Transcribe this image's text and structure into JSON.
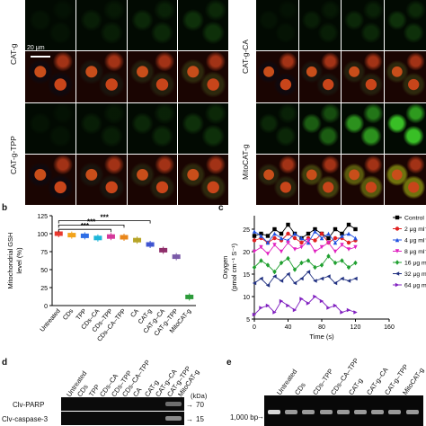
{
  "panel_a": {
    "scale_bar": "20 μm",
    "left_labels": [
      "CAT-g",
      "CAT-g-TPP"
    ],
    "right_labels": [
      "CAT-g-CA",
      "MitoCAT-g"
    ]
  },
  "panel_b": {
    "letter": "b",
    "ylabel": "Mitochondrial GSH\nlevel (%)",
    "significance": [
      "***",
      "***",
      "***"
    ]
  },
  "panel_c": {
    "letter": "c",
    "ylabel": "Oxygen\n(pmol cm⁻¹ S⁻¹)",
    "xlabel": "Time (s)"
  },
  "panel_d": {
    "letter": "d",
    "kda_label": "(kDa)",
    "rows": [
      {
        "name": "Clv-PARP",
        "kda": "70"
      },
      {
        "name": "Clv-caspase-3",
        "kda": "15"
      }
    ],
    "lanes": [
      "Untreated",
      "CDs",
      "TPP",
      "CDs–CA",
      "CDs–TPP",
      "CDs–CA–TPP",
      "CA",
      "CAT-g",
      "CAT-g–CA",
      "CAT-g–TPP",
      "MitoCAT-g"
    ]
  },
  "panel_e": {
    "letter": "e",
    "marker": "1,000 bp",
    "lanes": [
      "Untreated",
      "CDs",
      "CDs–TPP",
      "CDs–CA–TPP",
      "CAT-g",
      "CAT-g–CA",
      "CAT-g–TPP",
      "MitoCAT-g"
    ]
  },
  "chart_data": [
    {
      "type": "bar",
      "categories": [
        "Untreated",
        "CDs",
        "TPP",
        "CDs–CA",
        "CDs–TPP",
        "CDs–CA–TPP",
        "CA",
        "CAT-g",
        "CAT-g–CA",
        "CAT-g–TPP",
        "MitoCAT-g"
      ],
      "values": [
        100,
        98,
        97,
        94,
        96,
        95,
        91,
        85,
        77,
        68,
        12
      ],
      "colors": [
        "#e8382f",
        "#f2a31b",
        "#2e6ee6",
        "#1fb6d9",
        "#d4399a",
        "#e9861a",
        "#b7a427",
        "#3f55d1",
        "#8f2f6b",
        "#7b5ba8",
        "#2d9b3a"
      ],
      "ylim": [
        0,
        125
      ],
      "yticks": [
        0,
        25,
        50,
        75,
        100,
        125
      ],
      "ylabel": "Mitochondrial GSH level (%)"
    },
    {
      "type": "line",
      "xlabel": "Time (s)",
      "ylabel": "Oxygen (pmol cm⁻¹ S⁻¹)",
      "xlim": [
        0,
        160
      ],
      "ylim": [
        5,
        28
      ],
      "xticks": [
        0,
        40,
        80,
        120,
        160
      ],
      "yticks": [
        5,
        10,
        15,
        20,
        25
      ],
      "x": [
        0,
        8,
        16,
        24,
        32,
        40,
        48,
        56,
        64,
        72,
        80,
        88,
        96,
        104,
        112,
        120
      ],
      "series": [
        {
          "name": "Control",
          "color": "#000000",
          "marker": "square",
          "values": [
            23.5,
            24,
            23.5,
            25,
            24,
            26,
            24,
            23,
            24,
            25,
            24,
            23,
            25,
            24,
            26,
            25
          ]
        },
        {
          "name": "2 μg ml⁻¹",
          "color": "#e02020",
          "marker": "circle",
          "values": [
            22.5,
            23,
            22,
            23,
            22.5,
            24,
            23,
            22,
            23,
            22.5,
            24,
            22,
            23,
            23,
            22,
            22.5
          ]
        },
        {
          "name": "4 μg ml⁻¹",
          "color": "#2050e0",
          "marker": "triangle-up",
          "values": [
            24.5,
            23.5,
            22,
            24,
            23,
            22.5,
            24,
            23,
            22,
            24.5,
            23,
            24,
            22,
            23.5,
            24,
            23
          ]
        },
        {
          "name": "8 μg ml⁻¹",
          "color": "#e020c0",
          "marker": "triangle-down",
          "values": [
            20,
            21,
            19.5,
            21.5,
            20,
            22,
            20.5,
            21,
            22.5,
            20,
            21,
            22,
            20,
            21.5,
            20.5,
            21
          ]
        },
        {
          "name": "16 μg ml⁻¹",
          "color": "#20a030",
          "marker": "diamond",
          "values": [
            16.5,
            18,
            17,
            15.5,
            17.5,
            18.5,
            16,
            17.5,
            18,
            16.5,
            17,
            19,
            17.5,
            18,
            16.5,
            17.5
          ]
        },
        {
          "name": "32 μg ml⁻¹",
          "color": "#203080",
          "marker": "triangle-left",
          "values": [
            13,
            14,
            12.5,
            14.5,
            13.5,
            15,
            13,
            14,
            15.5,
            13.5,
            14,
            14.5,
            13,
            14,
            13.5,
            14
          ]
        },
        {
          "name": "64 μg ml⁻¹",
          "color": "#8020c0",
          "marker": "triangle-right",
          "values": [
            6,
            7.5,
            8,
            6.5,
            9,
            8,
            7,
            9.5,
            8.5,
            10,
            9,
            7.5,
            8,
            6.5,
            7,
            6.5
          ]
        }
      ]
    }
  ]
}
